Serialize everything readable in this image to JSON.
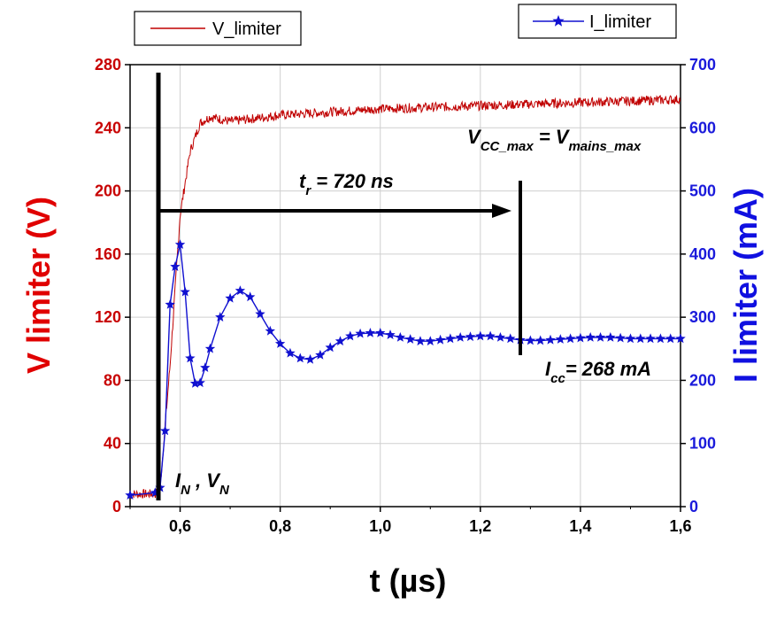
{
  "chart_data": {
    "type": "line",
    "x_label": "t (µs)",
    "y_left_label": "V limiter (V)",
    "y_right_label": "I limiter (mA)",
    "x_range": [
      0.5,
      1.6
    ],
    "y_left_range": [
      0,
      280
    ],
    "y_right_range": [
      0,
      700
    ],
    "x_ticks": [
      "0,6",
      "0,8",
      "1,0",
      "1,2",
      "1,4",
      "1,6"
    ],
    "x_tick_values": [
      0.6,
      0.8,
      1.0,
      1.2,
      1.4,
      1.6
    ],
    "y_left_ticks": [
      "0",
      "40",
      "80",
      "120",
      "160",
      "200",
      "240",
      "280"
    ],
    "y_left_tick_values": [
      0,
      40,
      80,
      120,
      160,
      200,
      240,
      280
    ],
    "y_right_ticks": [
      "0",
      "100",
      "200",
      "300",
      "400",
      "500",
      "600",
      "700"
    ],
    "y_right_tick_values": [
      0,
      100,
      200,
      300,
      400,
      500,
      600,
      700
    ],
    "grid": true,
    "series": [
      {
        "name": "V_limiter",
        "axis": "left",
        "color": "#c00000",
        "marker": "none",
        "x": [
          0.5,
          0.55,
          0.56,
          0.58,
          0.6,
          0.62,
          0.64,
          0.66,
          0.7,
          0.8,
          0.9,
          1.0,
          1.1,
          1.2,
          1.3,
          1.4,
          1.5,
          1.6
        ],
        "y": [
          8,
          8,
          12,
          90,
          185,
          225,
          243,
          247,
          244,
          248,
          250,
          252,
          253,
          254,
          255,
          256,
          257,
          258
        ]
      },
      {
        "name": "I_limiter",
        "axis": "right",
        "color": "#1010d0",
        "marker": "star",
        "x": [
          0.5,
          0.55,
          0.56,
          0.57,
          0.58,
          0.59,
          0.6,
          0.61,
          0.62,
          0.63,
          0.64,
          0.65,
          0.66,
          0.68,
          0.7,
          0.72,
          0.74,
          0.76,
          0.78,
          0.8,
          0.82,
          0.84,
          0.86,
          0.88,
          0.9,
          0.92,
          0.94,
          0.96,
          0.98,
          1.0,
          1.02,
          1.04,
          1.06,
          1.08,
          1.1,
          1.12,
          1.14,
          1.16,
          1.18,
          1.2,
          1.22,
          1.24,
          1.26,
          1.28,
          1.3,
          1.32,
          1.34,
          1.36,
          1.38,
          1.4,
          1.42,
          1.44,
          1.46,
          1.48,
          1.5,
          1.52,
          1.54,
          1.56,
          1.58,
          1.6
        ],
        "y": [
          18,
          22,
          30,
          120,
          320,
          380,
          415,
          340,
          235,
          195,
          196,
          220,
          250,
          300,
          330,
          342,
          332,
          305,
          278,
          258,
          243,
          235,
          233,
          240,
          252,
          262,
          270,
          274,
          275,
          275,
          272,
          268,
          265,
          262,
          262,
          264,
          266,
          268,
          269,
          270,
          270,
          268,
          266,
          264,
          263,
          263,
          264,
          265,
          266,
          267,
          268,
          268,
          268,
          267,
          266,
          266,
          266,
          266,
          266,
          266
        ]
      }
    ],
    "legend": [
      {
        "label": "V_limiter",
        "placement": "top-left"
      },
      {
        "label": "I_limiter",
        "placement": "top-right"
      }
    ],
    "annotations": {
      "tr": {
        "main": "t",
        "sub": "r",
        "rest": " = 720 ns"
      },
      "vcc": {
        "main1": "V",
        "sub1": "CC_max",
        "mid": " = V",
        "sub2": "mains_max"
      },
      "icc": {
        "main": "I",
        "sub": "cc",
        "rest": "= 268 mA"
      },
      "in_vn": {
        "main1": "I",
        "sub1": "N",
        "mid": " , V",
        "sub2": "N"
      }
    }
  }
}
